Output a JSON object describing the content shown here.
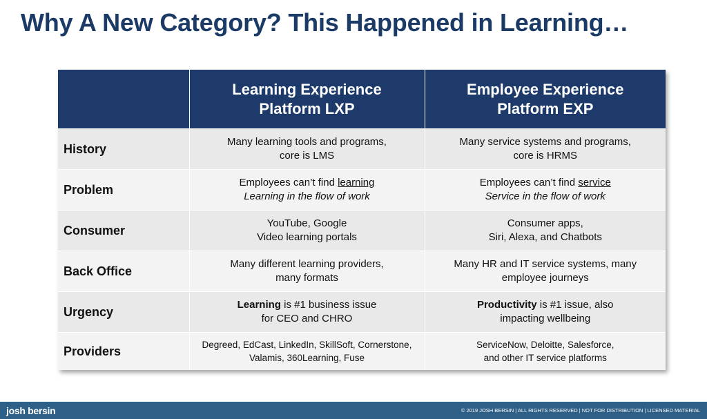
{
  "title": "Why A New Category?  This Happened in Learning…",
  "table": {
    "headers": {
      "col1_line1": "Learning Experience",
      "col1_line2": "Platform LXP",
      "col2_line1": "Employee Experience",
      "col2_line2": "Platform EXP"
    },
    "rows": {
      "history": {
        "label": "History",
        "lxp_line1": "Many learning tools and programs,",
        "lxp_line2": "core is LMS",
        "exp_line1": "Many service systems and programs,",
        "exp_line2": "core is HRMS"
      },
      "problem": {
        "label": "Problem",
        "lxp_line1_prefix": "Employees can’t find ",
        "lxp_line1_underlined": "learning",
        "lxp_line2": "Learning in the flow of work",
        "exp_line1_prefix": "Employees can’t find ",
        "exp_line1_underlined": "service",
        "exp_line2": "Service in the flow of work"
      },
      "consumer": {
        "label": "Consumer",
        "lxp_line1": "YouTube, Google",
        "lxp_line2": "Video learning portals",
        "exp_line1": "Consumer apps,",
        "exp_line2": "Siri, Alexa, and Chatbots"
      },
      "back_office": {
        "label": "Back Office",
        "lxp_line1": "Many different learning providers,",
        "lxp_line2": "many formats",
        "exp_line1": "Many HR and IT service systems, many",
        "exp_line2": "employee journeys"
      },
      "urgency": {
        "label": "Urgency",
        "lxp_bold": "Learning",
        "lxp_line1_rest": " is #1 business issue",
        "lxp_line2": "for CEO and CHRO",
        "exp_bold": "Productivity",
        "exp_line1_rest": " is #1 issue, also",
        "exp_line2": "impacting wellbeing"
      },
      "providers": {
        "label": "Providers",
        "lxp_line1": "Degreed, EdCast, LinkedIn, SkillSoft, Cornerstone,",
        "lxp_line2": "Valamis, 360Learning, Fuse",
        "exp_line1": "ServiceNow, Deloitte, Salesforce,",
        "exp_line2": "and other IT service platforms"
      }
    }
  },
  "footer": {
    "logo": "josh bersin",
    "copyright": "© 2019 JOSH BERSIN | ALL RIGHTS RESERVED | NOT FOR DISTRIBUTION | LICENSED MATERIAL"
  },
  "colors": {
    "title": "#1b3a66",
    "header_bg": "#1d3a6a",
    "footer_bg": "#2e5f86"
  }
}
